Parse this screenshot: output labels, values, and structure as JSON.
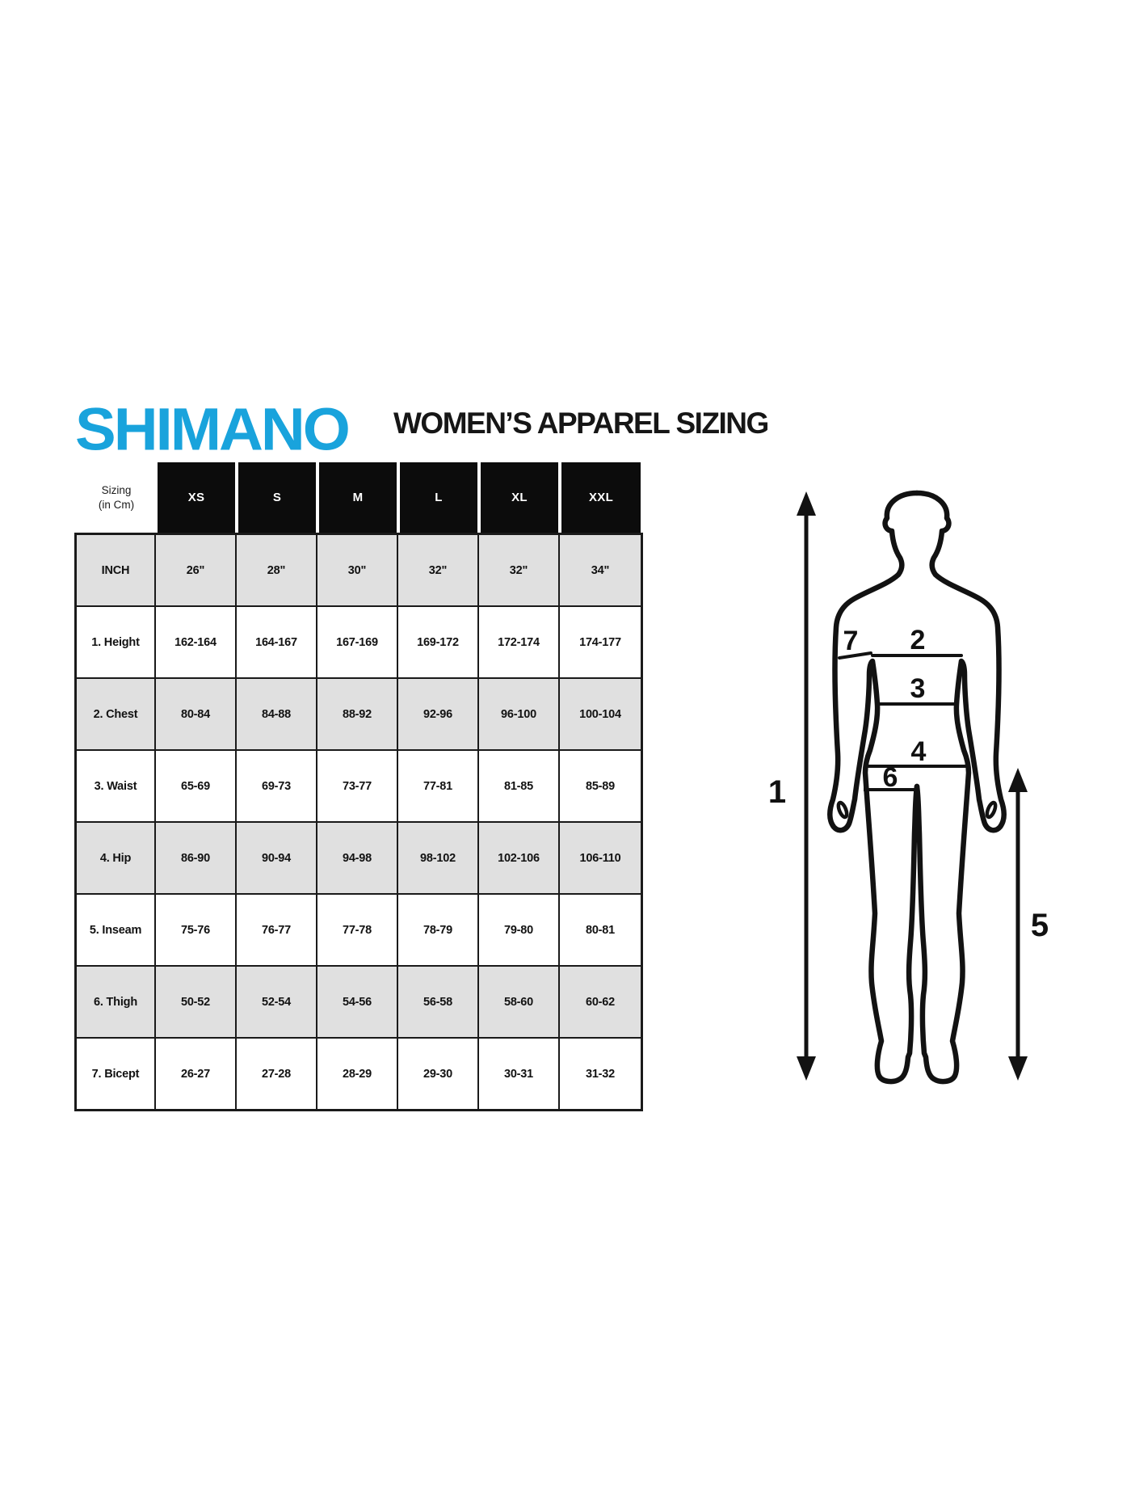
{
  "header": {
    "logo_text": "SHIMANO",
    "logo_color": "#19A3DC",
    "title": "WOMEN’S APPAREL SIZING"
  },
  "size_table": {
    "corner_line1": "Sizing",
    "corner_line2": "(in Cm)",
    "shaded_row_color": "#e0e0e0",
    "header_bg_color": "#0c0c0c",
    "border_color": "#1a1a1a"
  },
  "chart_data": {
    "type": "table",
    "title": "WOMEN’S APPAREL SIZING",
    "unit_note": "Sizing (in Cm)",
    "columns": [
      "XS",
      "S",
      "M",
      "L",
      "XL",
      "XXL"
    ],
    "rows": [
      {
        "label": "INCH",
        "shaded": true,
        "values": [
          "26\"",
          "28\"",
          "30\"",
          "32\"",
          "32\"",
          "34\""
        ]
      },
      {
        "label": "1. Height",
        "shaded": false,
        "values": [
          "162-164",
          "164-167",
          "167-169",
          "169-172",
          "172-174",
          "174-177"
        ]
      },
      {
        "label": "2. Chest",
        "shaded": true,
        "values": [
          "80-84",
          "84-88",
          "88-92",
          "92-96",
          "96-100",
          "100-104"
        ]
      },
      {
        "label": "3. Waist",
        "shaded": false,
        "values": [
          "65-69",
          "69-73",
          "73-77",
          "77-81",
          "81-85",
          "85-89"
        ]
      },
      {
        "label": "4. Hip",
        "shaded": true,
        "values": [
          "86-90",
          "90-94",
          "94-98",
          "98-102",
          "102-106",
          "106-110"
        ]
      },
      {
        "label": "5. Inseam",
        "shaded": false,
        "values": [
          "75-76",
          "76-77",
          "77-78",
          "78-79",
          "79-80",
          "80-81"
        ]
      },
      {
        "label": "6. Thigh",
        "shaded": true,
        "values": [
          "50-52",
          "52-54",
          "54-56",
          "56-58",
          "58-60",
          "60-62"
        ]
      },
      {
        "label": "7. Bicept",
        "shaded": false,
        "values": [
          "26-27",
          "27-28",
          "28-29",
          "29-30",
          "30-31",
          "31-32"
        ]
      }
    ]
  },
  "diagram": {
    "height_label": "1",
    "chest_label": "2",
    "waist_label": "3",
    "hip_label": "4",
    "inseam_label": "5",
    "thigh_label": "6",
    "bicep_label": "7"
  }
}
